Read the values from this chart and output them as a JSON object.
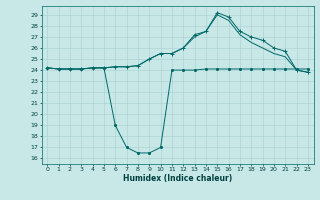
{
  "xlabel": "Humidex (Indice chaleur)",
  "ylabel": "",
  "background_color": "#c8e8e8",
  "grid_color": "#a8d0d0",
  "line_color": "#006868",
  "xlim": [
    -0.5,
    23.5
  ],
  "ylim": [
    15.5,
    29.8
  ],
  "yticks": [
    16,
    17,
    18,
    19,
    20,
    21,
    22,
    23,
    24,
    25,
    26,
    27,
    28,
    29
  ],
  "xticks": [
    0,
    1,
    2,
    3,
    4,
    5,
    6,
    7,
    8,
    9,
    10,
    11,
    12,
    13,
    14,
    15,
    16,
    17,
    18,
    19,
    20,
    21,
    22,
    23
  ],
  "series": [
    {
      "x": [
        0,
        1,
        2,
        3,
        4,
        5,
        6,
        7,
        8,
        9,
        10,
        11,
        12,
        13,
        14,
        15,
        16,
        17,
        18,
        19,
        20,
        21,
        22,
        23
      ],
      "y": [
        24.2,
        24.1,
        24.1,
        24.1,
        24.2,
        24.2,
        19.0,
        17.0,
        16.5,
        16.5,
        17.0,
        24.0,
        24.0,
        24.0,
        24.1,
        24.1,
        24.1,
        24.1,
        24.1,
        24.1,
        24.1,
        24.1,
        24.1,
        24.1
      ],
      "marker": "o",
      "markersize": 1.5
    },
    {
      "x": [
        0,
        1,
        2,
        3,
        4,
        5,
        6,
        7,
        8,
        9,
        10,
        11,
        12,
        13,
        14,
        15,
        16,
        17,
        18,
        19,
        20,
        21,
        22,
        23
      ],
      "y": [
        24.2,
        24.1,
        24.1,
        24.1,
        24.2,
        24.2,
        24.3,
        24.3,
        24.4,
        25.0,
        25.5,
        25.5,
        26.0,
        27.2,
        27.5,
        29.2,
        28.8,
        27.5,
        27.0,
        26.7,
        26.0,
        25.7,
        24.0,
        23.8
      ],
      "marker": "+",
      "markersize": 3.5
    },
    {
      "x": [
        0,
        1,
        2,
        3,
        4,
        5,
        6,
        7,
        8,
        9,
        10,
        11,
        12,
        13,
        14,
        15,
        16,
        17,
        18,
        19,
        20,
        21,
        22,
        23
      ],
      "y": [
        24.2,
        24.1,
        24.1,
        24.1,
        24.2,
        24.2,
        24.3,
        24.3,
        24.4,
        25.0,
        25.5,
        25.5,
        26.0,
        27.0,
        27.5,
        29.0,
        28.5,
        27.2,
        26.5,
        26.0,
        25.5,
        25.2,
        24.0,
        23.8
      ],
      "marker": null,
      "markersize": 0
    }
  ]
}
